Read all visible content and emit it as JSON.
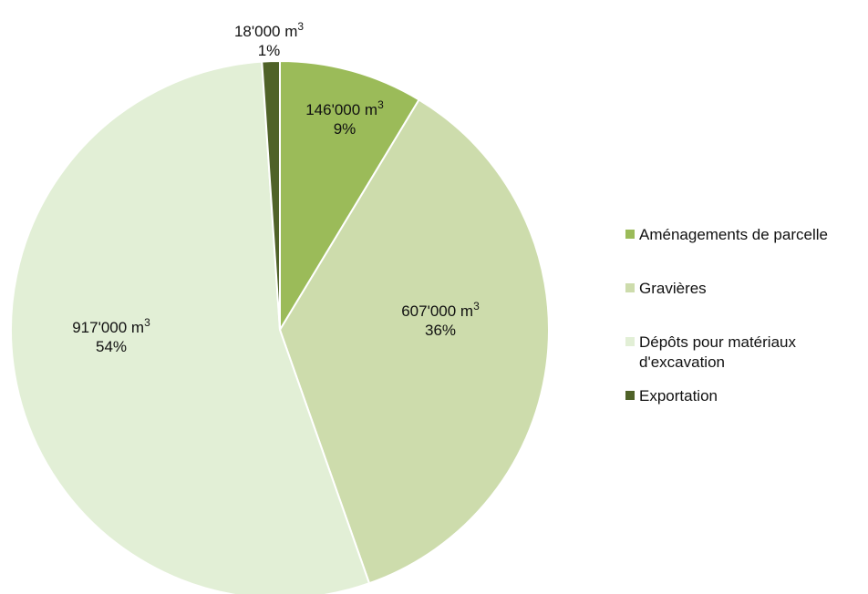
{
  "chart_data": {
    "type": "pie",
    "title": "",
    "unit": "m",
    "unit_exponent": "3",
    "start_angle_deg": 0,
    "direction": "clockwise",
    "slices": [
      {
        "label": "Aménagements de parcelle",
        "legend_lines": [
          "Aménagements de parcelle"
        ],
        "volume": 146000,
        "volume_text": "146'000",
        "percent": 9,
        "percent_text": "9%",
        "color": "#9bbb59"
      },
      {
        "label": "Gravières",
        "legend_lines": [
          "Gravières"
        ],
        "volume": 607000,
        "volume_text": "607'000",
        "percent": 36,
        "percent_text": "36%",
        "color": "#cddcac"
      },
      {
        "label": "Dépôts pour matériaux d'excavation",
        "legend_lines": [
          "Dépôts pour matériaux",
          "d'excavation"
        ],
        "volume": 917000,
        "volume_text": "917'000",
        "percent": 54,
        "percent_text": "54%",
        "color": "#e2efd6"
      },
      {
        "label": "Exportation",
        "legend_lines": [
          "Exportation"
        ],
        "volume": 18000,
        "volume_text": "18'000",
        "percent": 1,
        "percent_text": "1%",
        "color": "#4f6228"
      }
    ],
    "legend_position": "right"
  }
}
